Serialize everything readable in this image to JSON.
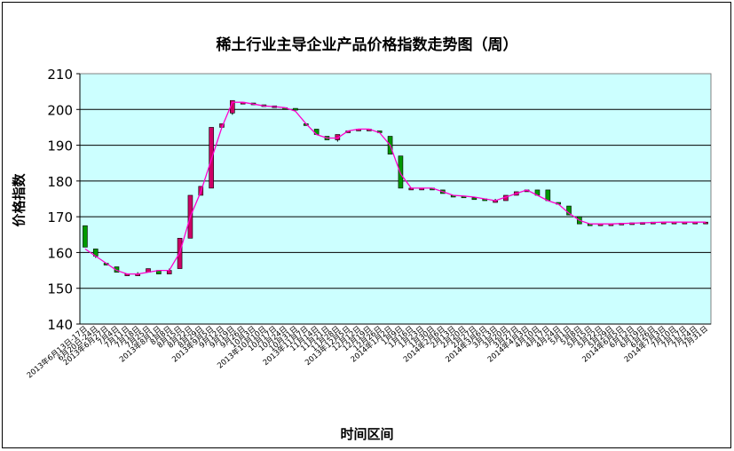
{
  "chart_data": {
    "type": "stock",
    "title": "稀土行业主导企业产品价格指数走势图（周）",
    "xlabel": "时间区间",
    "ylabel": "价格指数",
    "ylim": [
      140,
      210
    ],
    "yticks": [
      140,
      150,
      160,
      170,
      180,
      190,
      200,
      210
    ],
    "grid": true,
    "colors": {
      "plot_bg": "#ccffff",
      "up_box": "#cc0066",
      "down_box": "#009900",
      "line": "#ff00cc",
      "wick": "#000000"
    },
    "categories": [
      "2013年6月13日-17日",
      "6月20日-24日",
      "2013年6月27日",
      "7月4日",
      "7月11日",
      "7月18日",
      "7月25日",
      "2013年8月1日",
      "8月8日",
      "8月15日",
      "8月22日",
      "8月29日",
      "2013年9月5日",
      "9月12日",
      "9月19日",
      "9月26日",
      "10月3日",
      "2013年10月10日",
      "10月17日",
      "10月24日",
      "10月31日",
      "2013年11月7日",
      "11月14日",
      "11月21日",
      "11月28日",
      "2013年12月5日",
      "12月12日",
      "12月19日",
      "12月26日",
      "2014年1月2日",
      "1月9日",
      "1月16日",
      "1月23日",
      "1月30日",
      "2014年2月6日",
      "2月13日",
      "2月20日",
      "2月27日",
      "2014年3月6日",
      "3月13日",
      "3月20日",
      "3月27日",
      "2014年4月3日",
      "4月10日",
      "4月17日",
      "4月24日",
      "5月1日",
      "5月8日",
      "5月15日",
      "5月22日",
      "5月29日",
      "2014年6月5日",
      "6月12日",
      "6月19日",
      "6月26日",
      "2014年7月3日",
      "7月10日",
      "7月17日",
      "7月24日",
      "7月31日"
    ],
    "series": [
      {
        "ohlc": [
          [
            167.5,
            167.5,
            161.5,
            161.5
          ],
          [
            161,
            161,
            158.5,
            159
          ],
          [
            157,
            157,
            156.5,
            156.5
          ],
          [
            156,
            156,
            154.5,
            154.5
          ],
          [
            154,
            154,
            153.8,
            154
          ],
          [
            154,
            154.5,
            153.5,
            154
          ],
          [
            154.5,
            155.5,
            154.5,
            155.5
          ],
          [
            155,
            155,
            154,
            154
          ],
          [
            154,
            155.5,
            154,
            155
          ],
          [
            155.5,
            164,
            155.5,
            164
          ],
          [
            164,
            176,
            164,
            176
          ],
          [
            176,
            178.5,
            176,
            178.5
          ],
          [
            178,
            195,
            178,
            195
          ],
          [
            195,
            196,
            195,
            196
          ],
          [
            199,
            202.5,
            198.5,
            202.5
          ],
          [
            202,
            202,
            202,
            202
          ],
          [
            201.8,
            201.8,
            201.5,
            201.5
          ],
          [
            201.3,
            201.3,
            201,
            201
          ],
          [
            201,
            201,
            200.8,
            200.8
          ],
          [
            200.5,
            200.5,
            200.3,
            200.3
          ],
          [
            200.3,
            200.3,
            200,
            200
          ],
          [
            196,
            196,
            195.5,
            195.5
          ],
          [
            194.5,
            194.5,
            193,
            193
          ],
          [
            192.5,
            192.5,
            191.5,
            191.5
          ],
          [
            191.5,
            193,
            191,
            193
          ],
          [
            193.5,
            194,
            193.5,
            194
          ],
          [
            194.5,
            194.5,
            194.5,
            194.5
          ],
          [
            194.5,
            194.5,
            194.3,
            194.5
          ],
          [
            194,
            194,
            193.5,
            193.5
          ],
          [
            192.5,
            192.5,
            187.5,
            187.5
          ],
          [
            187,
            187,
            178,
            178
          ],
          [
            178,
            178,
            178,
            178
          ],
          [
            178,
            178,
            178,
            178
          ],
          [
            178,
            178,
            177.8,
            177.8
          ],
          [
            177.5,
            177.5,
            176.5,
            176.5
          ],
          [
            176,
            176,
            175.8,
            175.8
          ],
          [
            175.8,
            175.8,
            175.5,
            175.5
          ],
          [
            175.3,
            175.3,
            175,
            175
          ],
          [
            175,
            175,
            174.5,
            174.5
          ],
          [
            174.5,
            175,
            174,
            174.5
          ],
          [
            174.5,
            176,
            174.5,
            176
          ],
          [
            176,
            177,
            176,
            177
          ],
          [
            177,
            177.5,
            177,
            177.5
          ],
          [
            177.5,
            177.5,
            176,
            176
          ],
          [
            177.5,
            177.5,
            174.5,
            174.5
          ],
          [
            174,
            174,
            173.5,
            173.5
          ],
          [
            173,
            173,
            170.5,
            170.5
          ],
          [
            170,
            170,
            168,
            168
          ],
          [
            168,
            168,
            167.8,
            167.8
          ],
          [
            168,
            168,
            168,
            168
          ],
          [
            168,
            168,
            168,
            168
          ],
          [
            168.2,
            168.2,
            168.2,
            168.2
          ],
          [
            168.3,
            168.3,
            168.3,
            168.3
          ],
          [
            168.4,
            168.4,
            168.4,
            168.4
          ],
          [
            168.5,
            168.5,
            168.5,
            168.5
          ],
          [
            168.5,
            168.5,
            168.5,
            168.5
          ],
          [
            168.5,
            168.5,
            168.5,
            168.5
          ],
          [
            168.5,
            168.5,
            168.5,
            168.5
          ],
          [
            168.5,
            168.5,
            168.5,
            168.5
          ],
          [
            168.5,
            168.5,
            168.5,
            168.5
          ]
        ],
        "close_line": [
          161,
          159,
          157,
          155,
          154,
          154,
          154.5,
          155,
          155,
          160,
          170,
          177,
          186,
          195,
          202,
          202,
          201.5,
          201,
          200.8,
          200.5,
          199.5,
          196,
          193,
          192,
          192,
          194,
          194.5,
          194.5,
          193.5,
          190,
          182,
          178,
          178,
          178,
          177,
          176,
          175.8,
          175.5,
          175,
          174.5,
          175.5,
          176.5,
          177.5,
          176,
          174.5,
          173.5,
          171,
          169,
          168,
          168,
          168,
          168.1,
          168.2,
          168.3,
          168.4,
          168.5,
          168.5,
          168.5,
          168.5,
          168.5
        ]
      }
    ]
  }
}
